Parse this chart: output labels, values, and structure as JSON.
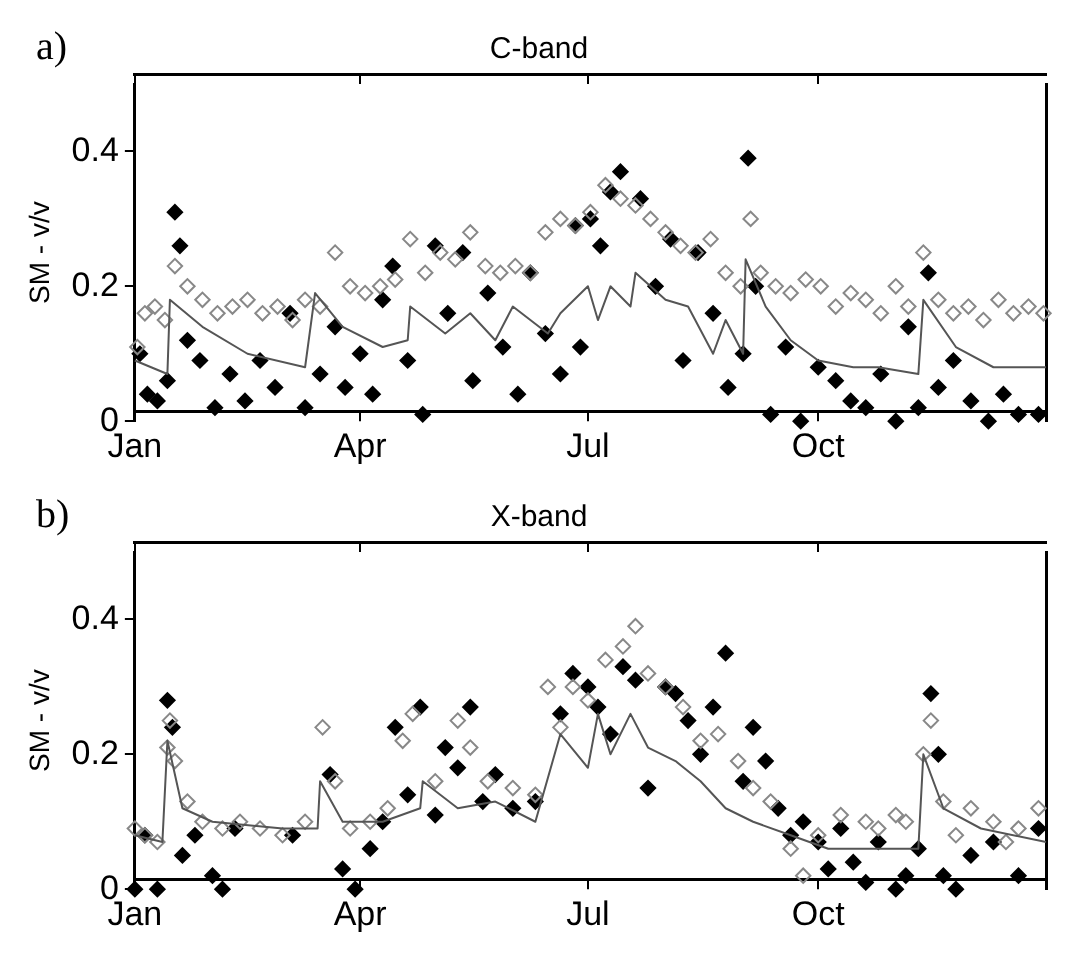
{
  "chart_data": [
    {
      "type": "scatter",
      "title": "C-band",
      "ylabel": "SM - v/v",
      "annotations": [
        "a)"
      ],
      "marker": "diamond",
      "grid": false,
      "legend": false,
      "xlim": [
        "--01-01",
        "--12-31"
      ],
      "xticks": [
        {
          "value": "--01-01",
          "label": "Jan"
        },
        {
          "value": "--04-01",
          "label": "Apr"
        },
        {
          "value": "--07-01",
          "label": "Jul"
        },
        {
          "value": "--10-01",
          "label": "Oct"
        }
      ],
      "ylim": [
        0,
        0.5
      ],
      "yticks": [
        0,
        0.2,
        0.4
      ],
      "series": [
        {
          "type": "scatter",
          "color": "#000000",
          "x": [
            "--01-03",
            "--01-06",
            "--01-10",
            "--01-14",
            "--01-17",
            "--01-19",
            "--01-22",
            "--01-27",
            "--02-02",
            "--02-08",
            "--02-14",
            "--02-20",
            "--02-26",
            "--03-04",
            "--03-10",
            "--03-16",
            "--03-22",
            "--03-26",
            "--04-01",
            "--04-06",
            "--04-10",
            "--04-14",
            "--04-20",
            "--04-26",
            "--05-01",
            "--05-06",
            "--05-12",
            "--05-16",
            "--05-22",
            "--05-28",
            "--06-03",
            "--06-08",
            "--06-14",
            "--06-20",
            "--06-26",
            "--06-28",
            "--07-02",
            "--07-06",
            "--07-10",
            "--07-14",
            "--07-22",
            "--07-28",
            "--08-03",
            "--08-08",
            "--08-14",
            "--08-20",
            "--08-26",
            "--09-01",
            "--09-03",
            "--09-06",
            "--09-12",
            "--09-18",
            "--09-24",
            "--10-01",
            "--10-08",
            "--10-14",
            "--10-20",
            "--10-26",
            "--11-01",
            "--11-06",
            "--11-10",
            "--11-14",
            "--11-18",
            "--11-24",
            "--12-01",
            "--12-08",
            "--12-14",
            "--12-20",
            "--12-28"
          ],
          "values": [
            0.1,
            0.04,
            0.03,
            0.06,
            0.31,
            0.26,
            0.12,
            0.09,
            0.02,
            0.07,
            0.03,
            0.09,
            0.05,
            0.16,
            0.02,
            0.07,
            0.14,
            0.05,
            0.1,
            0.04,
            0.18,
            0.23,
            0.09,
            0.01,
            0.26,
            0.16,
            0.25,
            0.06,
            0.19,
            0.11,
            0.04,
            0.22,
            0.13,
            0.07,
            0.29,
            0.11,
            0.3,
            0.26,
            0.34,
            0.37,
            0.33,
            0.2,
            0.27,
            0.09,
            0.25,
            0.16,
            0.05,
            0.1,
            0.39,
            0.2,
            0.01,
            0.11,
            0.0,
            0.08,
            0.06,
            0.03,
            0.02,
            0.07,
            0.0,
            0.14,
            0.02,
            0.22,
            0.05,
            0.09,
            0.03,
            0.0,
            0.04,
            0.01,
            0.01
          ]
        },
        {
          "type": "scatter",
          "color": "#888888",
          "x": [
            "--01-02",
            "--01-05",
            "--01-09",
            "--01-13",
            "--01-17",
            "--01-22",
            "--01-28",
            "--02-03",
            "--02-09",
            "--02-15",
            "--02-21",
            "--02-27",
            "--03-05",
            "--03-10",
            "--03-16",
            "--03-22",
            "--03-28",
            "--04-03",
            "--04-09",
            "--04-15",
            "--04-21",
            "--04-27",
            "--05-03",
            "--05-09",
            "--05-15",
            "--05-21",
            "--05-27",
            "--06-02",
            "--06-08",
            "--06-14",
            "--06-20",
            "--06-26",
            "--07-02",
            "--07-08",
            "--07-14",
            "--07-20",
            "--07-26",
            "--08-01",
            "--08-07",
            "--08-13",
            "--08-19",
            "--08-25",
            "--08-31",
            "--09-04",
            "--09-08",
            "--09-14",
            "--09-20",
            "--09-26",
            "--10-02",
            "--10-08",
            "--10-14",
            "--10-20",
            "--10-26",
            "--11-01",
            "--11-06",
            "--11-12",
            "--11-18",
            "--11-24",
            "--11-30",
            "--12-06",
            "--12-12",
            "--12-18",
            "--12-24",
            "--12-30"
          ],
          "values": [
            0.11,
            0.16,
            0.17,
            0.15,
            0.23,
            0.2,
            0.18,
            0.16,
            0.17,
            0.18,
            0.16,
            0.17,
            0.15,
            0.18,
            0.17,
            0.25,
            0.2,
            0.19,
            0.2,
            0.21,
            0.27,
            0.22,
            0.25,
            0.24,
            0.28,
            0.23,
            0.22,
            0.23,
            0.22,
            0.28,
            0.3,
            0.29,
            0.31,
            0.35,
            0.33,
            0.32,
            0.3,
            0.28,
            0.26,
            0.25,
            0.27,
            0.22,
            0.2,
            0.3,
            0.22,
            0.2,
            0.19,
            0.21,
            0.2,
            0.17,
            0.19,
            0.18,
            0.16,
            0.2,
            0.17,
            0.25,
            0.18,
            0.16,
            0.17,
            0.15,
            0.18,
            0.16,
            0.17,
            0.16
          ]
        },
        {
          "type": "line",
          "marker": "none",
          "color": "#555555",
          "x": [
            "--01-01",
            "--01-14",
            "--01-15",
            "--01-28",
            "--02-15",
            "--03-10",
            "--03-14",
            "--03-25",
            "--04-10",
            "--04-20",
            "--04-21",
            "--05-05",
            "--05-15",
            "--05-25",
            "--06-01",
            "--06-15",
            "--06-20",
            "--07-01",
            "--07-05",
            "--07-10",
            "--07-18",
            "--07-20",
            "--08-01",
            "--08-10",
            "--08-20",
            "--08-25",
            "--09-01",
            "--09-02",
            "--09-10",
            "--09-20",
            "--10-01",
            "--10-15",
            "--10-25",
            "--11-10",
            "--11-12",
            "--11-25",
            "--12-10",
            "--12-31"
          ],
          "values": [
            0.09,
            0.07,
            0.18,
            0.14,
            0.1,
            0.08,
            0.19,
            0.14,
            0.11,
            0.12,
            0.17,
            0.13,
            0.16,
            0.12,
            0.17,
            0.13,
            0.16,
            0.2,
            0.15,
            0.2,
            0.17,
            0.22,
            0.18,
            0.17,
            0.1,
            0.15,
            0.1,
            0.24,
            0.17,
            0.12,
            0.09,
            0.08,
            0.08,
            0.07,
            0.18,
            0.11,
            0.08,
            0.08
          ]
        }
      ]
    },
    {
      "type": "scatter",
      "title": "X-band",
      "ylabel": "SM - v/v",
      "annotations": [
        "b)"
      ],
      "marker": "diamond",
      "grid": false,
      "legend": false,
      "xlim": [
        "--01-01",
        "--12-31"
      ],
      "xticks": [
        {
          "value": "--01-01",
          "label": "Jan"
        },
        {
          "value": "--04-01",
          "label": "Apr"
        },
        {
          "value": "--07-01",
          "label": "Jul"
        },
        {
          "value": "--10-01",
          "label": "Oct"
        }
      ],
      "ylim": [
        0,
        0.5
      ],
      "yticks": [
        0,
        0.2,
        0.4
      ],
      "series": [
        {
          "type": "scatter",
          "color": "#000000",
          "x": [
            "--01-01",
            "--01-05",
            "--01-10",
            "--01-14",
            "--01-16",
            "--01-20",
            "--01-25",
            "--02-01",
            "--02-05",
            "--02-10",
            "--03-05",
            "--03-20",
            "--03-25",
            "--03-30",
            "--04-05",
            "--04-10",
            "--04-15",
            "--04-20",
            "--04-25",
            "--05-01",
            "--05-05",
            "--05-10",
            "--05-15",
            "--05-20",
            "--05-25",
            "--06-01",
            "--06-10",
            "--06-20",
            "--06-25",
            "--07-01",
            "--07-05",
            "--07-10",
            "--07-15",
            "--07-20",
            "--07-25",
            "--08-01",
            "--08-05",
            "--08-10",
            "--08-15",
            "--08-20",
            "--08-25",
            "--09-01",
            "--09-05",
            "--09-10",
            "--09-15",
            "--09-20",
            "--09-25",
            "--10-01",
            "--10-05",
            "--10-10",
            "--10-15",
            "--10-20",
            "--10-25",
            "--11-01",
            "--11-05",
            "--11-10",
            "--11-15",
            "--11-18",
            "--11-20",
            "--11-25",
            "--12-01",
            "--12-10",
            "--12-20",
            "--12-28"
          ],
          "values": [
            0.0,
            0.08,
            0.0,
            0.28,
            0.24,
            0.05,
            0.08,
            0.02,
            0.0,
            0.09,
            0.08,
            0.17,
            0.03,
            0.0,
            0.06,
            0.1,
            0.24,
            0.14,
            0.27,
            0.11,
            0.21,
            0.18,
            0.27,
            0.13,
            0.17,
            0.12,
            0.13,
            0.26,
            0.32,
            0.3,
            0.27,
            0.23,
            0.33,
            0.31,
            0.15,
            0.3,
            0.29,
            0.25,
            0.2,
            0.27,
            0.35,
            0.16,
            0.24,
            0.19,
            0.12,
            0.08,
            0.1,
            0.07,
            0.03,
            0.09,
            0.04,
            0.01,
            0.07,
            0.0,
            0.02,
            0.06,
            0.29,
            0.2,
            0.02,
            0.0,
            0.05,
            0.07,
            0.02,
            0.09
          ]
        },
        {
          "type": "scatter",
          "color": "#888888",
          "x": [
            "--01-01",
            "--01-05",
            "--01-10",
            "--01-14",
            "--01-15",
            "--01-17",
            "--01-22",
            "--01-28",
            "--02-05",
            "--02-12",
            "--02-20",
            "--03-01",
            "--03-10",
            "--03-17",
            "--03-22",
            "--03-28",
            "--04-05",
            "--04-12",
            "--04-18",
            "--04-22",
            "--05-01",
            "--05-10",
            "--05-15",
            "--05-22",
            "--06-01",
            "--06-10",
            "--06-15",
            "--06-20",
            "--06-25",
            "--07-01",
            "--07-08",
            "--07-15",
            "--07-20",
            "--07-25",
            "--08-01",
            "--08-08",
            "--08-15",
            "--08-22",
            "--08-30",
            "--09-05",
            "--09-12",
            "--09-20",
            "--09-25",
            "--10-01",
            "--10-10",
            "--10-20",
            "--10-25",
            "--11-01",
            "--11-05",
            "--11-12",
            "--11-15",
            "--11-20",
            "--11-25",
            "--12-01",
            "--12-10",
            "--12-15",
            "--12-20",
            "--12-28"
          ],
          "values": [
            0.09,
            0.08,
            0.07,
            0.21,
            0.25,
            0.19,
            0.13,
            0.1,
            0.09,
            0.1,
            0.09,
            0.08,
            0.1,
            0.24,
            0.16,
            0.09,
            0.1,
            0.12,
            0.22,
            0.26,
            0.16,
            0.25,
            0.21,
            0.16,
            0.15,
            0.14,
            0.3,
            0.24,
            0.3,
            0.28,
            0.34,
            0.36,
            0.39,
            0.32,
            0.3,
            0.27,
            0.22,
            0.23,
            0.19,
            0.15,
            0.13,
            0.06,
            0.02,
            0.08,
            0.11,
            0.1,
            0.09,
            0.11,
            0.1,
            0.2,
            0.25,
            0.13,
            0.08,
            0.12,
            0.1,
            0.07,
            0.09,
            0.12
          ]
        },
        {
          "type": "line",
          "marker": "none",
          "color": "#555555",
          "x": [
            "--01-01",
            "--01-12",
            "--01-14",
            "--01-20",
            "--02-01",
            "--03-01",
            "--03-15",
            "--03-16",
            "--03-25",
            "--04-10",
            "--04-25",
            "--04-26",
            "--05-10",
            "--05-25",
            "--06-10",
            "--06-20",
            "--07-01",
            "--07-05",
            "--07-10",
            "--07-18",
            "--07-25",
            "--08-05",
            "--08-15",
            "--08-25",
            "--09-05",
            "--09-20",
            "--10-05",
            "--10-20",
            "--11-10",
            "--11-12",
            "--11-20",
            "--12-05",
            "--12-31"
          ],
          "values": [
            0.08,
            0.07,
            0.22,
            0.12,
            0.1,
            0.09,
            0.09,
            0.16,
            0.1,
            0.1,
            0.12,
            0.16,
            0.12,
            0.13,
            0.1,
            0.23,
            0.18,
            0.26,
            0.2,
            0.26,
            0.21,
            0.19,
            0.16,
            0.12,
            0.1,
            0.08,
            0.06,
            0.06,
            0.06,
            0.2,
            0.12,
            0.09,
            0.07
          ]
        }
      ]
    }
  ]
}
